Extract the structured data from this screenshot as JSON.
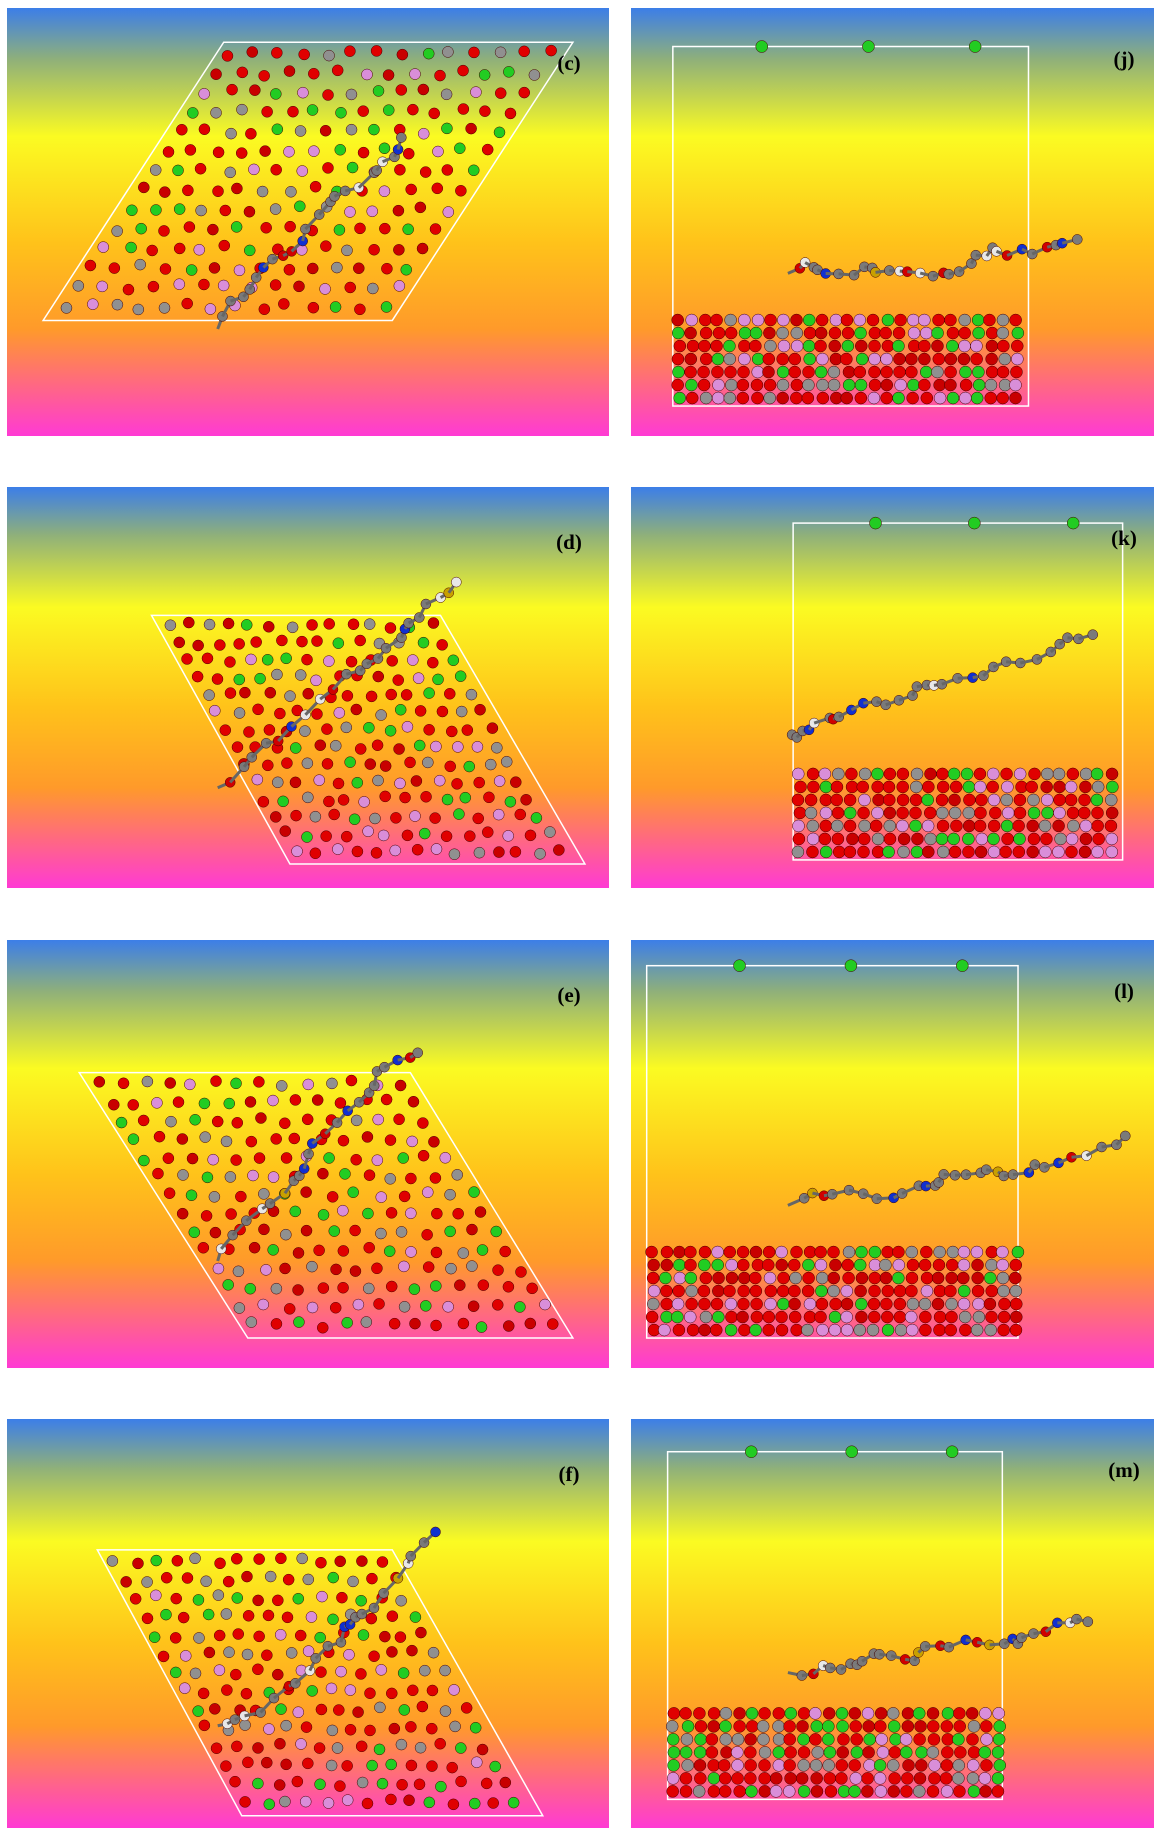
{
  "panels": [
    {
      "label": "(c)"
    },
    {
      "label": "(j)"
    },
    {
      "label": "(d)"
    },
    {
      "label": "(k)"
    },
    {
      "label": "(e)"
    },
    {
      "label": "(l)"
    },
    {
      "label": "(f)"
    },
    {
      "label": "(m)"
    }
  ]
}
